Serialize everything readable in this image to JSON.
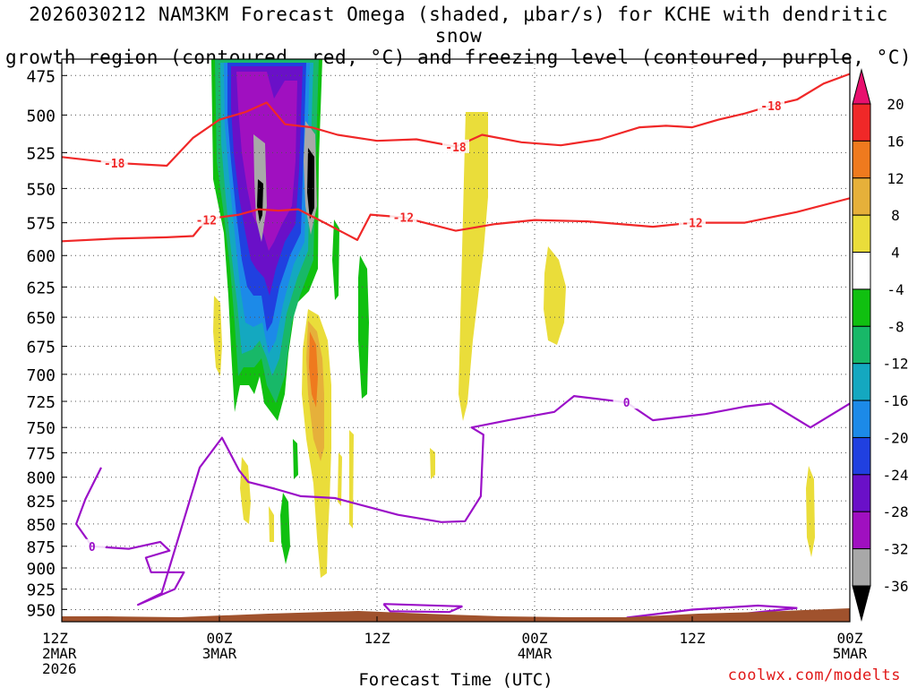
{
  "title_line1": "2026030212 NAM3KM Forecast Omega (shaded, μbar/s) for KCHE with dendritic snow",
  "title_line2": "growth region (contoured, red, °C) and freezing level (contoured, purple, °C)",
  "credit": "coolwx.com/modelts",
  "chart_data": {
    "type": "heatmap",
    "xlabel": "Forecast Time (UTC)",
    "x_ticks": [
      {
        "hours": 0,
        "lines": [
          "12Z",
          "2MAR",
          "2026"
        ]
      },
      {
        "hours": 12,
        "lines": [
          "00Z",
          "3MAR"
        ]
      },
      {
        "hours": 24,
        "lines": [
          "12Z"
        ]
      },
      {
        "hours": 36,
        "lines": [
          "00Z",
          "4MAR"
        ]
      },
      {
        "hours": 48,
        "lines": [
          "12Z"
        ]
      },
      {
        "hours": 60,
        "lines": [
          "00Z",
          "5MAR"
        ]
      }
    ],
    "xlim_hours": [
      0,
      60
    ],
    "y_ticks": [
      475,
      500,
      525,
      550,
      575,
      600,
      625,
      650,
      675,
      700,
      725,
      750,
      775,
      800,
      825,
      850,
      875,
      900,
      925,
      950
    ],
    "y_unit": "hPa",
    "ylim": [
      465,
      965
    ],
    "y_scale": "log",
    "grid": true,
    "colorbar": {
      "labels": [
        "20",
        "16",
        "12",
        "8",
        "4",
        "-4",
        "-8",
        "-12",
        "-16",
        "-20",
        "-24",
        "-28",
        "-32",
        "-36"
      ],
      "colors": [
        "#e8106e",
        "#f02828",
        "#ef7a1e",
        "#e6b03a",
        "#eadd3a",
        "#ffffff",
        "#10c010",
        "#18b868",
        "#14a8c0",
        "#1c8ae8",
        "#2040e0",
        "#6a10c8",
        "#a010c0",
        "#a8a8a8",
        "#000000"
      ]
    },
    "contour_labels": {
      "dgz_cold": "-18",
      "dgz_warm": "-12",
      "freezing": "0"
    },
    "dgz_minus18_hpa": [
      [
        0,
        528
      ],
      [
        4,
        532
      ],
      [
        8,
        534
      ],
      [
        10,
        515
      ],
      [
        12,
        503
      ],
      [
        14,
        498
      ],
      [
        15.6,
        492
      ],
      [
        17,
        506
      ],
      [
        19,
        508
      ],
      [
        21,
        513
      ],
      [
        24,
        517
      ],
      [
        27,
        516
      ],
      [
        30,
        521
      ],
      [
        32,
        513
      ],
      [
        35,
        518
      ],
      [
        38,
        520
      ],
      [
        41,
        516
      ],
      [
        44,
        508
      ],
      [
        46,
        507
      ],
      [
        48,
        508
      ],
      [
        50,
        503
      ],
      [
        52,
        499
      ],
      [
        54,
        494
      ],
      [
        56,
        490
      ],
      [
        58,
        480
      ],
      [
        60,
        474
      ]
    ],
    "dgz_minus12_hpa": [
      [
        0,
        589
      ],
      [
        4,
        587
      ],
      [
        8,
        586
      ],
      [
        10,
        585
      ],
      [
        11,
        573
      ],
      [
        12,
        571
      ],
      [
        13.5,
        569
      ],
      [
        15,
        565
      ],
      [
        16.5,
        566
      ],
      [
        18,
        565
      ],
      [
        20,
        575
      ],
      [
        22.5,
        588
      ],
      [
        23.5,
        569
      ],
      [
        26,
        571
      ],
      [
        30,
        581
      ],
      [
        33,
        576
      ],
      [
        36,
        573
      ],
      [
        40,
        574
      ],
      [
        45,
        578
      ],
      [
        48,
        575
      ],
      [
        52,
        575
      ],
      [
        56,
        567
      ],
      [
        60,
        557
      ]
    ],
    "freezing_level_hpa": [
      [
        3,
        790
      ],
      [
        1.8,
        823
      ],
      [
        1.1,
        850
      ],
      [
        2.3,
        875
      ],
      [
        5.1,
        878
      ],
      [
        7.5,
        870
      ],
      [
        8.2,
        880
      ],
      [
        6.4,
        888
      ],
      [
        6.8,
        905
      ],
      [
        9.3,
        905
      ],
      [
        8.6,
        925
      ],
      [
        5.8,
        944
      ],
      [
        7.6,
        930
      ],
      [
        10.5,
        790
      ],
      [
        12.2,
        760
      ],
      [
        13.5,
        793
      ],
      [
        14.2,
        805
      ],
      [
        16.2,
        812
      ],
      [
        18.2,
        820
      ],
      [
        20.8,
        822
      ],
      [
        25.6,
        840
      ],
      [
        28.9,
        848
      ],
      [
        30.7,
        847
      ],
      [
        31.9,
        820
      ],
      [
        32.1,
        757
      ],
      [
        31.2,
        750
      ],
      [
        34,
        743
      ],
      [
        37.5,
        735
      ],
      [
        39,
        720
      ],
      [
        43,
        726
      ],
      [
        45,
        743
      ],
      [
        49,
        737
      ],
      [
        52,
        730
      ],
      [
        54,
        727
      ],
      [
        57,
        750
      ],
      [
        60,
        727
      ]
    ]
  }
}
